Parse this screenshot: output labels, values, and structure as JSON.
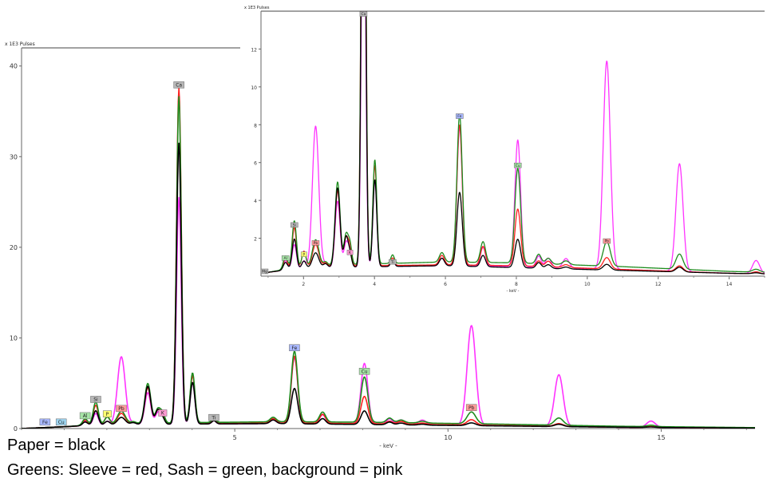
{
  "colors": {
    "paper": "#000000",
    "sleeve": "#ff2020",
    "sash": "#1e8c1e",
    "background": "#ff33ff",
    "el_gray": "#b8b8b8",
    "el_green": "#a6e3a6",
    "el_blue": "#a9b8ff",
    "el_yellow": "#ffff70",
    "el_pink": "#ff9ad2",
    "el_red": "#ff9a9a",
    "el_lblue": "#9ed4f0"
  },
  "captions": {
    "line1": "Paper = black",
    "line2": "Greens: Sleeve = red, Sash = green, background = pink"
  },
  "chart_data": [
    {
      "type": "line",
      "title": "x 1E3 Pulses",
      "xlabel": "- keV -",
      "ylabel": "",
      "xlim": [
        0,
        17.2
      ],
      "ylim": [
        0,
        42
      ],
      "xticks": [
        5,
        10,
        15
      ],
      "yticks": [
        0,
        10,
        20,
        30,
        40
      ],
      "series_names": [
        "Paper",
        "Sleeve",
        "Sash",
        "background"
      ],
      "peaks": [
        {
          "label": "Al",
          "keV": 1.49,
          "heights": [
            0.4,
            0.6,
            0.7,
            0.5
          ],
          "w": 0.06,
          "labelColor": "el_green",
          "labelY": 0.8
        },
        {
          "label": "Si",
          "keV": 1.74,
          "heights": [
            1.6,
            2.2,
            2.5,
            1.3
          ],
          "w": 0.06,
          "labelColor": "el_gray",
          "labelY": 2.6
        },
        {
          "label": "P",
          "keV": 2.01,
          "heights": [
            0.4,
            0.9,
            0.8,
            0.4
          ],
          "w": 0.06,
          "labelColor": "el_yellow",
          "labelY": 1.0
        },
        {
          "label": "Pb",
          "keV": 2.34,
          "heights": [
            0.8,
            1.2,
            1.4,
            7.5
          ],
          "w": 0.09,
          "labelColor": "el_red",
          "labelY": 1.6
        },
        {
          "label": "",
          "keV": 2.62,
          "heights": [
            0.2,
            0.2,
            0.2,
            0.2
          ],
          "w": 0.06,
          "labelColor": "",
          "labelY": 0
        },
        {
          "label": "",
          "keV": 2.96,
          "heights": [
            4.2,
            4.0,
            4.4,
            3.5
          ],
          "w": 0.07,
          "labelColor": "",
          "labelY": 0
        },
        {
          "label": "",
          "keV": 3.2,
          "heights": [
            1.6,
            1.5,
            1.6,
            1.3
          ],
          "w": 0.06,
          "labelColor": "",
          "labelY": 0
        },
        {
          "label": "K",
          "keV": 3.31,
          "heights": [
            0.6,
            0.9,
            1.0,
            0.8
          ],
          "w": 0.05,
          "labelColor": "el_pink",
          "labelY": 1.1
        },
        {
          "label": "Ca",
          "keV": 3.69,
          "heights": [
            31,
            37,
            36,
            25
          ],
          "w": 0.055,
          "labelColor": "el_gray",
          "labelY": 37.3
        },
        {
          "label": "",
          "keV": 4.01,
          "heights": [
            4.6,
            5.3,
            5.5,
            4.6
          ],
          "w": 0.055,
          "labelColor": "",
          "labelY": 0
        },
        {
          "label": "Ti",
          "keV": 4.51,
          "heights": [
            0.35,
            0.4,
            0.45,
            0.35
          ],
          "w": 0.05,
          "labelColor": "el_gray",
          "labelY": 0.6
        },
        {
          "label": "",
          "keV": 5.9,
          "heights": [
            0.4,
            0.5,
            0.5,
            0.4
          ],
          "w": 0.07,
          "labelColor": "",
          "labelY": 0
        },
        {
          "label": "Fe",
          "keV": 6.4,
          "heights": [
            3.9,
            7.4,
            7.8,
            7.3
          ],
          "w": 0.075,
          "labelColor": "el_blue",
          "labelY": 8.3
        },
        {
          "label": "",
          "keV": 7.06,
          "heights": [
            0.6,
            1.0,
            1.1,
            1.0
          ],
          "w": 0.07,
          "labelColor": "",
          "labelY": 0
        },
        {
          "label": "Cu",
          "keV": 8.04,
          "heights": [
            1.5,
            3.0,
            5.0,
            6.7
          ],
          "w": 0.08,
          "labelColor": "el_green",
          "labelY": 5.7
        },
        {
          "label": "",
          "keV": 8.63,
          "heights": [
            0.3,
            0.3,
            0.5,
            0.6
          ],
          "w": 0.07,
          "labelColor": "",
          "labelY": 0
        },
        {
          "label": "",
          "keV": 8.9,
          "heights": [
            0.2,
            0.3,
            0.3,
            0.5
          ],
          "w": 0.08,
          "labelColor": "",
          "labelY": 0
        },
        {
          "label": "",
          "keV": 9.4,
          "heights": [
            0.1,
            0.15,
            0.2,
            0.5
          ],
          "w": 0.09,
          "labelColor": "",
          "labelY": 0
        },
        {
          "label": "Pb",
          "keV": 10.55,
          "heights": [
            0.3,
            0.6,
            1.3,
            11.0
          ],
          "w": 0.1,
          "labelColor": "el_red",
          "labelY": 1.7
        },
        {
          "label": "",
          "keV": 12.6,
          "heights": [
            0.25,
            0.3,
            0.8,
            5.7
          ],
          "w": 0.1,
          "labelColor": "",
          "labelY": 0
        },
        {
          "label": "",
          "keV": 14.76,
          "heights": [
            0.05,
            0.1,
            0.15,
            0.7
          ],
          "w": 0.1,
          "labelColor": "",
          "labelY": 0
        }
      ],
      "baseline": {
        "x": [
          0.0,
          0.5,
          1.0,
          1.6,
          2.5,
          4.0,
          6.0,
          8.0,
          11.0,
          14.0,
          17.2
        ],
        "values": [
          [
            0.0,
            0.1,
            0.2,
            0.35,
            0.45,
            0.5,
            0.55,
            0.45,
            0.3,
            0.15,
            0.05
          ],
          [
            0.0,
            0.1,
            0.2,
            0.35,
            0.5,
            0.55,
            0.6,
            0.55,
            0.35,
            0.15,
            0.05
          ],
          [
            0.0,
            0.1,
            0.2,
            0.4,
            0.55,
            0.65,
            0.75,
            0.7,
            0.5,
            0.25,
            0.1
          ],
          [
            0.0,
            0.1,
            0.2,
            0.35,
            0.45,
            0.5,
            0.55,
            0.5,
            0.35,
            0.15,
            0.05
          ]
        ]
      },
      "extraLabels": [
        {
          "label": "Fe",
          "keV": 0.55,
          "labelColor": "el_blue",
          "labelY": 0.1
        },
        {
          "label": "Cu",
          "keV": 0.93,
          "labelColor": "el_lblue",
          "labelY": 0.1
        }
      ]
    },
    {
      "type": "line",
      "title": "x 1E3 Pulses",
      "xlabel": "- keV -",
      "ylabel": "",
      "xlim": [
        0.8,
        15.0
      ],
      "ylim": [
        0,
        14
      ],
      "xticks": [
        2,
        4,
        6,
        8,
        10,
        12,
        14
      ],
      "yticks": [
        2,
        4,
        6,
        8,
        10,
        12
      ],
      "series_names": [
        "Paper",
        "Sleeve",
        "Sash",
        "background"
      ],
      "extraLabels": [
        {
          "label": "Mg",
          "keV": 0.9,
          "labelColor": "el_gray",
          "labelY": 0.0
        }
      ]
    }
  ]
}
